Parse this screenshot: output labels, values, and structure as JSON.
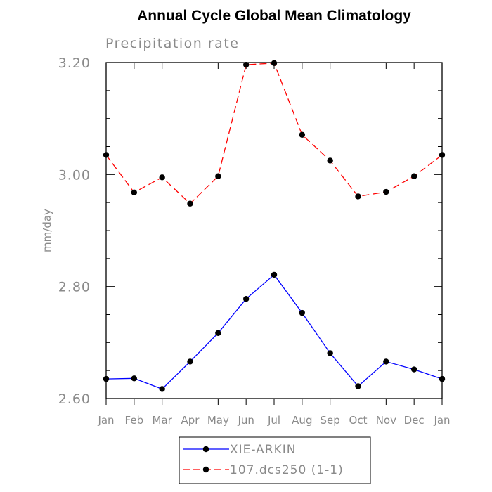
{
  "chart_data": {
    "type": "line",
    "title": "Annual Cycle Global Mean Climatology",
    "subtitle": "Precipitation rate",
    "xlabel": "",
    "ylabel": "mm/day",
    "categories": [
      "Jan",
      "Feb",
      "Mar",
      "Apr",
      "May",
      "Jun",
      "Jul",
      "Aug",
      "Sep",
      "Oct",
      "Nov",
      "Dec",
      "Jan"
    ],
    "ylim": [
      2.6,
      3.2
    ],
    "yticks": [
      "2.60",
      "2.80",
      "3.00",
      "3.20"
    ],
    "grid": false,
    "legend_position": "bottom",
    "series": [
      {
        "name": "XIE-ARKIN",
        "color": "#0000ff",
        "dash": "solid",
        "values": [
          2.635,
          2.636,
          2.617,
          2.666,
          2.717,
          2.778,
          2.821,
          2.753,
          2.681,
          2.622,
          2.666,
          2.652,
          2.635
        ]
      },
      {
        "name": "107.dcs250 (1-1)",
        "color": "#ff0000",
        "dash": "dashed",
        "values": [
          3.035,
          2.968,
          2.995,
          2.948,
          2.997,
          3.196,
          3.199,
          3.071,
          3.025,
          2.961,
          2.969,
          2.997,
          3.035
        ]
      }
    ]
  }
}
